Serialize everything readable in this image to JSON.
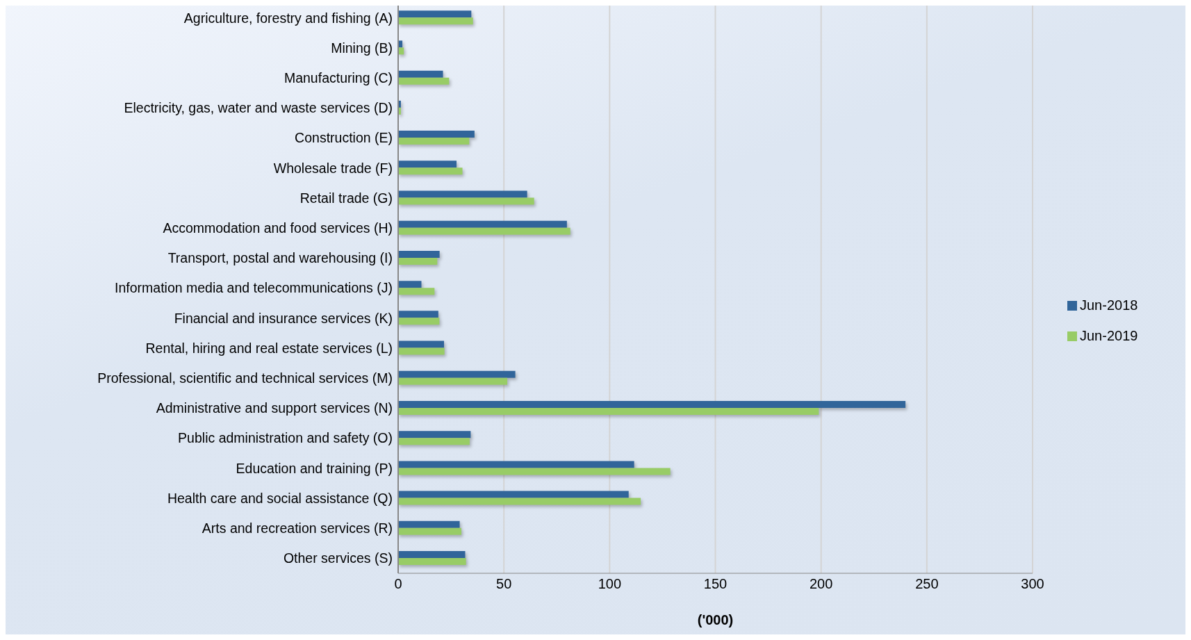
{
  "chart_data": {
    "type": "bar",
    "orientation": "horizontal",
    "xlabel": "('000)",
    "categories": [
      "Agriculture, forestry and fishing (A)",
      "Mining (B)",
      "Manufacturing (C)",
      "Electricity, gas, water and waste services (D)",
      "Construction (E)",
      "Wholesale trade (F)",
      "Retail trade (G)",
      "Accommodation and food services (H)",
      "Transport, postal and warehousing (I)",
      "Information media and telecommunications (J)",
      "Financial and insurance services (K)",
      "Rental, hiring and real estate services (L)",
      "Professional, scientific and technical services (M)",
      "Administrative and support services (N)",
      "Public administration and safety (O)",
      "Education and training (P)",
      "Health care and social assistance (Q)",
      "Arts and recreation services (R)",
      "Other services (S)"
    ],
    "series": [
      {
        "name": "Jun-2018",
        "color": "#31659a",
        "values": [
          34.6,
          2.0,
          21.2,
          1.3,
          36.1,
          27.6,
          61.0,
          79.8,
          19.6,
          11.0,
          19.0,
          21.7,
          55.4,
          239.9,
          34.3,
          111.6,
          109.0,
          29.1,
          31.7
        ]
      },
      {
        "name": "Jun-2019",
        "color": "#98cc66",
        "values": [
          35.4,
          2.7,
          24.1,
          1.3,
          33.6,
          30.4,
          64.3,
          81.4,
          18.5,
          17.2,
          19.5,
          21.9,
          51.6,
          198.9,
          33.8,
          128.7,
          114.7,
          29.9,
          32.1
        ]
      }
    ],
    "xlim": [
      0,
      300
    ],
    "xticks": [
      0,
      50,
      100,
      150,
      200,
      250,
      300
    ],
    "grid": "x",
    "legend": "right"
  }
}
